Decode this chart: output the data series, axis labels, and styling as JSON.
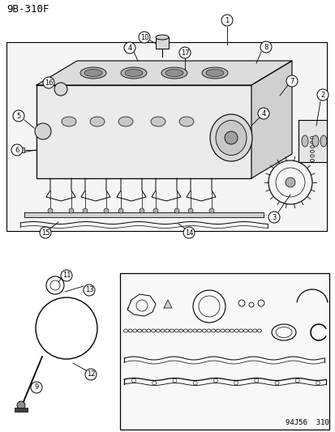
{
  "title": "9B-310F",
  "footer": "94J56  310",
  "bg_color": "#ffffff",
  "diagram_color": "#000000",
  "fig_width": 4.14,
  "fig_height": 5.33,
  "dpi": 100
}
